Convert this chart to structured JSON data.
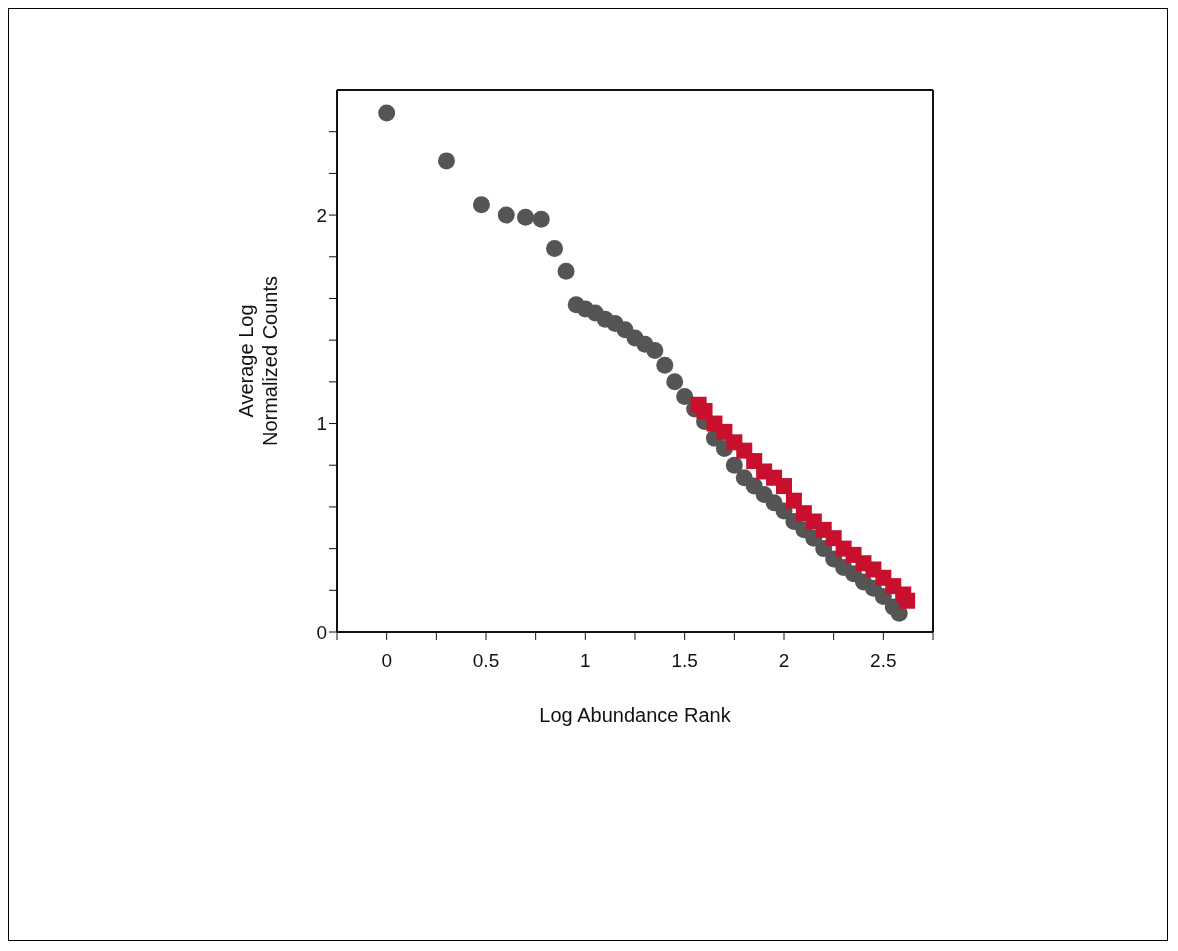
{
  "chart_data": {
    "type": "scatter",
    "xlabel": "Log Abundance Rank",
    "ylabel": "Average Log\nNormalized Counts",
    "xlim": [
      -0.25,
      2.75
    ],
    "ylim": [
      0,
      2.6
    ],
    "xticks": [
      {
        "value": -0.25,
        "label": null
      },
      0,
      {
        "value": 0.25,
        "label": null
      },
      0.5,
      {
        "value": 0.75,
        "label": null
      },
      1,
      {
        "value": 1.25,
        "label": null
      },
      1.5,
      {
        "value": 1.75,
        "label": null
      },
      2,
      {
        "value": 2.25,
        "label": null
      },
      2.5,
      {
        "value": 2.75,
        "label": null
      }
    ],
    "yticks": [
      0,
      {
        "value": 0.2,
        "label": null
      },
      {
        "value": 0.4,
        "label": null
      },
      {
        "value": 0.6,
        "label": null
      },
      {
        "value": 0.8,
        "label": null
      },
      1,
      {
        "value": 1.2,
        "label": null
      },
      {
        "value": 1.4,
        "label": null
      },
      {
        "value": 1.6,
        "label": null
      },
      {
        "value": 1.8,
        "label": null
      },
      2,
      {
        "value": 2.2,
        "label": null
      },
      {
        "value": 2.4,
        "label": null
      }
    ],
    "legend": false,
    "series": [
      {
        "color": "#555555",
        "marker": "circle",
        "x": [
          0,
          0.301,
          0.477,
          0.602,
          0.699,
          0.778,
          0.845,
          0.903,
          0.954,
          1.0,
          1.05,
          1.1,
          1.15,
          1.2,
          1.25,
          1.3,
          1.35,
          1.4,
          1.45,
          1.5,
          1.55,
          1.6,
          1.65,
          1.7,
          1.75,
          1.8,
          1.85,
          1.9,
          1.95,
          2.0,
          2.05,
          2.1,
          2.15,
          2.2,
          2.25,
          2.3,
          2.35,
          2.4,
          2.45,
          2.5,
          2.55,
          2.58
        ],
        "values": [
          2.49,
          2.26,
          2.05,
          2.0,
          1.99,
          1.98,
          1.84,
          1.73,
          1.57,
          1.55,
          1.53,
          1.5,
          1.48,
          1.45,
          1.41,
          1.38,
          1.35,
          1.28,
          1.2,
          1.13,
          1.07,
          1.01,
          0.93,
          0.88,
          0.8,
          0.74,
          0.7,
          0.66,
          0.62,
          0.58,
          0.53,
          0.49,
          0.45,
          0.4,
          0.35,
          0.31,
          0.28,
          0.24,
          0.21,
          0.17,
          0.12,
          0.09
        ]
      },
      {
        "color": "#c8102e",
        "marker": "square",
        "x": [
          1.57,
          1.6,
          1.65,
          1.7,
          1.75,
          1.8,
          1.85,
          1.9,
          1.95,
          2.0,
          2.05,
          2.1,
          2.15,
          2.2,
          2.25,
          2.3,
          2.35,
          2.4,
          2.45,
          2.5,
          2.55,
          2.6,
          2.62
        ],
        "values": [
          1.09,
          1.06,
          1.0,
          0.96,
          0.91,
          0.87,
          0.82,
          0.77,
          0.74,
          0.7,
          0.63,
          0.57,
          0.53,
          0.49,
          0.45,
          0.4,
          0.37,
          0.33,
          0.3,
          0.26,
          0.22,
          0.18,
          0.15
        ]
      }
    ]
  }
}
